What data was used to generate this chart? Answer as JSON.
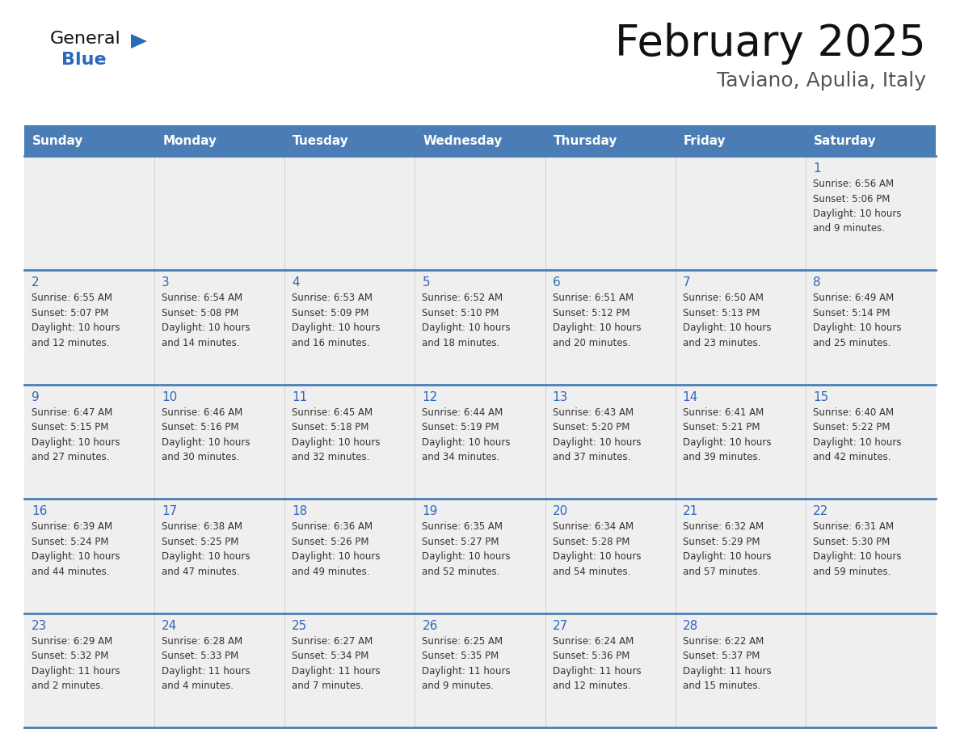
{
  "title": "February 2025",
  "subtitle": "Taviano, Apulia, Italy",
  "days_of_week": [
    "Sunday",
    "Monday",
    "Tuesday",
    "Wednesday",
    "Thursday",
    "Friday",
    "Saturday"
  ],
  "header_bg": "#4a7db5",
  "header_text": "#ffffff",
  "row_bg": "#efefef",
  "row_bg_white": "#ffffff",
  "cell_border_color": "#4a7db5",
  "cell_border_top_color": "#4a7db5",
  "day_number_color": "#3366bb",
  "info_text_color": "#333333",
  "title_color": "#111111",
  "subtitle_color": "#555555",
  "logo_general_color": "#111111",
  "logo_blue_color": "#2a6abb",
  "logo_triangle_color": "#2a6abb",
  "calendar": [
    [
      {
        "day": null,
        "info": ""
      },
      {
        "day": null,
        "info": ""
      },
      {
        "day": null,
        "info": ""
      },
      {
        "day": null,
        "info": ""
      },
      {
        "day": null,
        "info": ""
      },
      {
        "day": null,
        "info": ""
      },
      {
        "day": 1,
        "info": "Sunrise: 6:56 AM\nSunset: 5:06 PM\nDaylight: 10 hours\nand 9 minutes."
      }
    ],
    [
      {
        "day": 2,
        "info": "Sunrise: 6:55 AM\nSunset: 5:07 PM\nDaylight: 10 hours\nand 12 minutes."
      },
      {
        "day": 3,
        "info": "Sunrise: 6:54 AM\nSunset: 5:08 PM\nDaylight: 10 hours\nand 14 minutes."
      },
      {
        "day": 4,
        "info": "Sunrise: 6:53 AM\nSunset: 5:09 PM\nDaylight: 10 hours\nand 16 minutes."
      },
      {
        "day": 5,
        "info": "Sunrise: 6:52 AM\nSunset: 5:10 PM\nDaylight: 10 hours\nand 18 minutes."
      },
      {
        "day": 6,
        "info": "Sunrise: 6:51 AM\nSunset: 5:12 PM\nDaylight: 10 hours\nand 20 minutes."
      },
      {
        "day": 7,
        "info": "Sunrise: 6:50 AM\nSunset: 5:13 PM\nDaylight: 10 hours\nand 23 minutes."
      },
      {
        "day": 8,
        "info": "Sunrise: 6:49 AM\nSunset: 5:14 PM\nDaylight: 10 hours\nand 25 minutes."
      }
    ],
    [
      {
        "day": 9,
        "info": "Sunrise: 6:47 AM\nSunset: 5:15 PM\nDaylight: 10 hours\nand 27 minutes."
      },
      {
        "day": 10,
        "info": "Sunrise: 6:46 AM\nSunset: 5:16 PM\nDaylight: 10 hours\nand 30 minutes."
      },
      {
        "day": 11,
        "info": "Sunrise: 6:45 AM\nSunset: 5:18 PM\nDaylight: 10 hours\nand 32 minutes."
      },
      {
        "day": 12,
        "info": "Sunrise: 6:44 AM\nSunset: 5:19 PM\nDaylight: 10 hours\nand 34 minutes."
      },
      {
        "day": 13,
        "info": "Sunrise: 6:43 AM\nSunset: 5:20 PM\nDaylight: 10 hours\nand 37 minutes."
      },
      {
        "day": 14,
        "info": "Sunrise: 6:41 AM\nSunset: 5:21 PM\nDaylight: 10 hours\nand 39 minutes."
      },
      {
        "day": 15,
        "info": "Sunrise: 6:40 AM\nSunset: 5:22 PM\nDaylight: 10 hours\nand 42 minutes."
      }
    ],
    [
      {
        "day": 16,
        "info": "Sunrise: 6:39 AM\nSunset: 5:24 PM\nDaylight: 10 hours\nand 44 minutes."
      },
      {
        "day": 17,
        "info": "Sunrise: 6:38 AM\nSunset: 5:25 PM\nDaylight: 10 hours\nand 47 minutes."
      },
      {
        "day": 18,
        "info": "Sunrise: 6:36 AM\nSunset: 5:26 PM\nDaylight: 10 hours\nand 49 minutes."
      },
      {
        "day": 19,
        "info": "Sunrise: 6:35 AM\nSunset: 5:27 PM\nDaylight: 10 hours\nand 52 minutes."
      },
      {
        "day": 20,
        "info": "Sunrise: 6:34 AM\nSunset: 5:28 PM\nDaylight: 10 hours\nand 54 minutes."
      },
      {
        "day": 21,
        "info": "Sunrise: 6:32 AM\nSunset: 5:29 PM\nDaylight: 10 hours\nand 57 minutes."
      },
      {
        "day": 22,
        "info": "Sunrise: 6:31 AM\nSunset: 5:30 PM\nDaylight: 10 hours\nand 59 minutes."
      }
    ],
    [
      {
        "day": 23,
        "info": "Sunrise: 6:29 AM\nSunset: 5:32 PM\nDaylight: 11 hours\nand 2 minutes."
      },
      {
        "day": 24,
        "info": "Sunrise: 6:28 AM\nSunset: 5:33 PM\nDaylight: 11 hours\nand 4 minutes."
      },
      {
        "day": 25,
        "info": "Sunrise: 6:27 AM\nSunset: 5:34 PM\nDaylight: 11 hours\nand 7 minutes."
      },
      {
        "day": 26,
        "info": "Sunrise: 6:25 AM\nSunset: 5:35 PM\nDaylight: 11 hours\nand 9 minutes."
      },
      {
        "day": 27,
        "info": "Sunrise: 6:24 AM\nSunset: 5:36 PM\nDaylight: 11 hours\nand 12 minutes."
      },
      {
        "day": 28,
        "info": "Sunrise: 6:22 AM\nSunset: 5:37 PM\nDaylight: 11 hours\nand 15 minutes."
      },
      {
        "day": null,
        "info": ""
      }
    ]
  ],
  "fig_width": 11.88,
  "fig_height": 9.18,
  "dpi": 100
}
